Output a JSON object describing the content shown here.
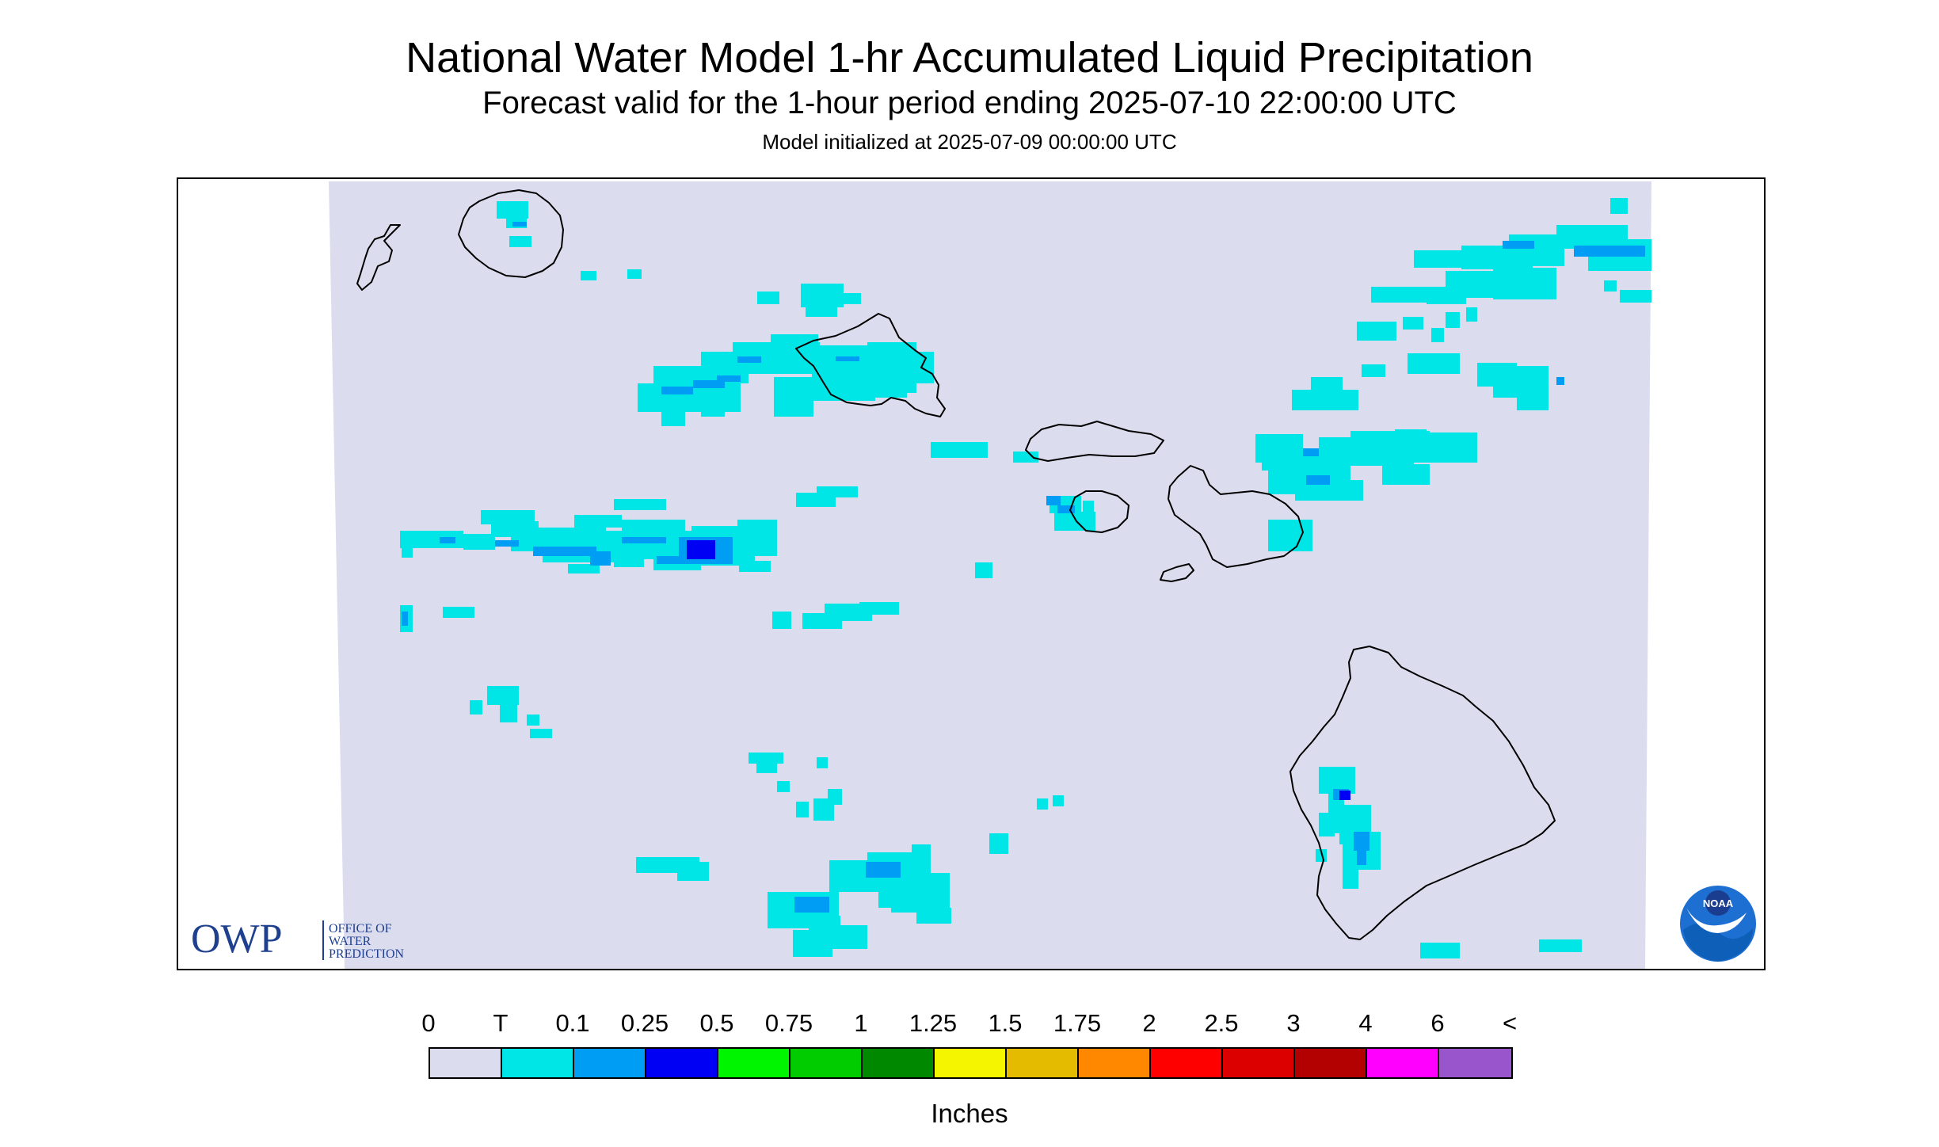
{
  "header": {
    "title": "National Water Model 1-hr Accumulated Liquid Precipitation",
    "subtitle": "Forecast valid for the 1-hour period ending 2025-07-10 22:00:00 UTC",
    "init": "Model initialized at 2025-07-09 00:00:00 UTC"
  },
  "map": {
    "region": "Hawaiian Islands",
    "background_color": "#dcdcef",
    "coastline_color": "#000000",
    "islands": [
      "Niihau",
      "Kauai",
      "Oahu",
      "Molokai",
      "Lanai",
      "Maui",
      "Kahoolawe",
      "Hawaii"
    ]
  },
  "logos": {
    "owp": {
      "mark": "OWP",
      "line1": "OFFICE OF",
      "line2": "WATER",
      "line3": "PREDICTION",
      "color": "#1f3f8f"
    },
    "noaa": {
      "mark": "NOAA",
      "color": "#1d6fd1"
    }
  },
  "legend": {
    "units_label": "Inches",
    "tick_labels": [
      "0",
      "T",
      "0.1",
      "0.25",
      "0.5",
      "0.75",
      "1",
      "1.25",
      "1.5",
      "1.75",
      "2",
      "2.5",
      "3",
      "4",
      "6",
      "<"
    ],
    "colors": [
      "#dcdcef",
      "#00e5e5",
      "#009df5",
      "#0000f5",
      "#00f500",
      "#00cc00",
      "#008800",
      "#f5f500",
      "#e5bb00",
      "#ff8800",
      "#ff0000",
      "#dd0000",
      "#b30000",
      "#ff00ff",
      "#9955cc"
    ]
  }
}
